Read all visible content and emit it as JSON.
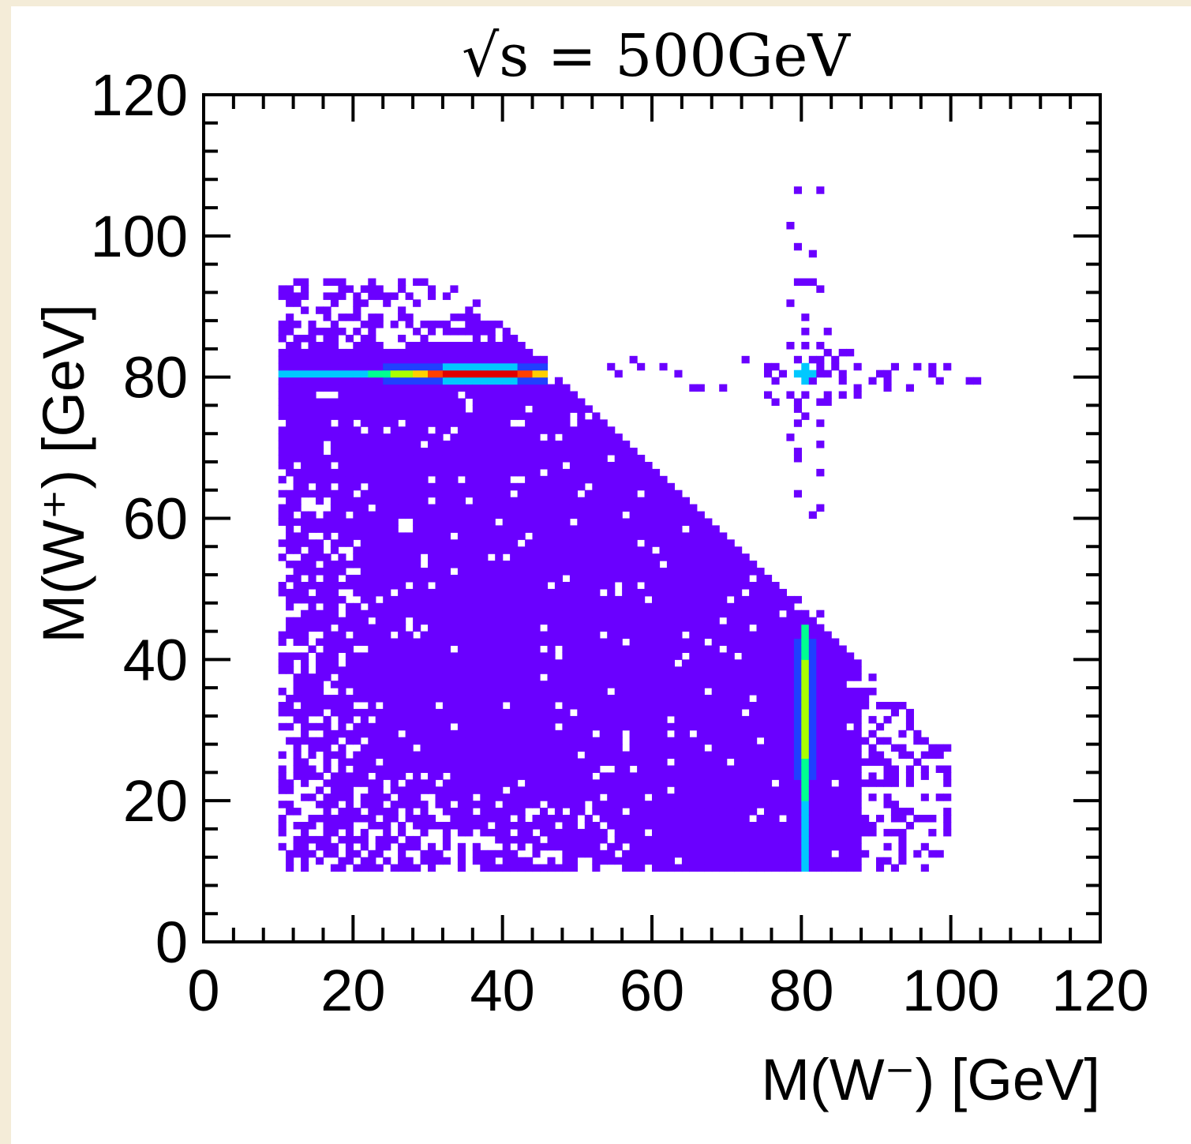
{
  "chart_data": {
    "type": "heatmap",
    "title": "√s = 500GeV",
    "xlabel": "M(W⁻) [GeV]",
    "ylabel": "M(W⁺) [GeV]",
    "xlim": [
      0,
      120
    ],
    "ylim": [
      0,
      120
    ],
    "x_ticks": [
      "0",
      "20",
      "40",
      "60",
      "80",
      "100",
      "120"
    ],
    "y_ticks": [
      "0",
      "20",
      "40",
      "60",
      "80",
      "100",
      "120"
    ],
    "bin_width_gev": 1,
    "colors": {
      "low": "#6a00ff",
      "scale": [
        "#6a00ff",
        "#2040ff",
        "#00c8ff",
        "#00ff90",
        "#aaff00",
        "#ffd000",
        "#ff4000",
        "#e00000"
      ]
    },
    "features": [
      {
        "name": "W+ on-shell band",
        "description": "horizontal band, peak near x 35-40",
        "x_range": [
          10,
          45
        ],
        "y_center": 80.5,
        "peak_intensity": 1.0
      },
      {
        "name": "W- on-shell band",
        "description": "vertical band",
        "x_center": 80.5,
        "y_range": [
          10,
          45
        ],
        "peak_intensity": 0.6
      },
      {
        "name": "both on-shell cluster",
        "x_center": 80.5,
        "y_center": 80.5,
        "peak_intensity": 0.35
      },
      {
        "name": "kinematic edge",
        "description": "upper edge of dense off-shell region",
        "edge": "y ≈ 127 - x",
        "x_range": [
          10,
          100
        ],
        "y_range": [
          10,
          95
        ]
      }
    ]
  }
}
